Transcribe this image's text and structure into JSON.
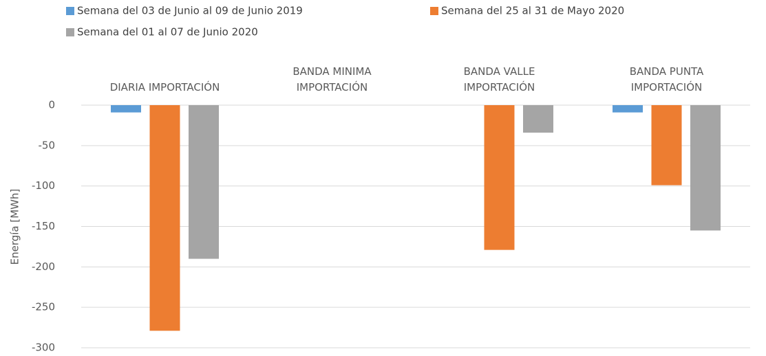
{
  "chart_data": {
    "type": "bar",
    "categories": [
      "DIARIA IMPORTACIÓN",
      "BANDA MINIMA\nIMPORTACIÓN",
      "BANDA VALLE\nIMPORTACIÓN",
      "BANDA PUNTA\nIMPORTACIÓN"
    ],
    "series": [
      {
        "name": "Semana del 03 de Junio al 09 de Junio 2019",
        "color": "#5b9bd5",
        "values": [
          -9,
          0,
          0,
          -9
        ]
      },
      {
        "name": "Semana del 25 al 31 de Mayo 2020",
        "color": "#ed7d31",
        "values": [
          -279,
          0,
          -179,
          -99
        ]
      },
      {
        "name": "Semana del 01 al 07 de Junio 2020",
        "color": "#a5a5a5",
        "values": [
          -190,
          0,
          -34,
          -155
        ]
      }
    ],
    "y_label": "Energía [MWh]",
    "ylim": [
      -300,
      0
    ],
    "yticks": [
      0,
      -50,
      -100,
      -150,
      -200,
      -250,
      -300
    ],
    "grid": true,
    "legend": "top"
  }
}
